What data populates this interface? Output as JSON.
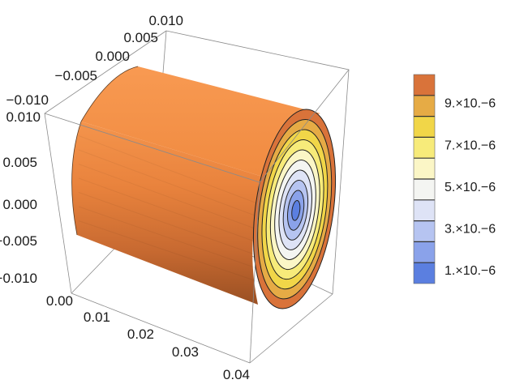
{
  "chart_data": {
    "type": "3d-cylinder-contour",
    "title": "",
    "axes": {
      "depth_axis": {
        "label": "",
        "ticks": [
          "0.010",
          "0.005",
          "0.000",
          "−0.005",
          "−0.010"
        ]
      },
      "vertical_axis": {
        "label": "",
        "ticks": [
          "0.010",
          "0.005",
          "0.000",
          "−0.005",
          "−0.010"
        ]
      },
      "front_axis": {
        "label": "",
        "ticks": [
          "0.00",
          "0.01",
          "0.02",
          "0.03",
          "0.04"
        ]
      }
    },
    "ranges": {
      "depth": [
        -0.01,
        0.01
      ],
      "vertical": [
        -0.01,
        0.01
      ],
      "front": [
        0,
        0.04
      ]
    },
    "cylinder_radius": 0.01,
    "contour_levels": [
      1e-06,
      2e-06,
      3e-06,
      4e-06,
      5e-06,
      6e-06,
      7e-06,
      8e-06,
      9e-06,
      1e-05
    ],
    "legend": {
      "placement": "right",
      "colors": [
        "#5b7fe0",
        "#8aa2ea",
        "#b6c4f1",
        "#dee3f6",
        "#f4f5f2",
        "#fbf6c6",
        "#f7eb7a",
        "#f1d648",
        "#e6ab45",
        "#d9733a"
      ],
      "labels": [
        "1.×10.−6",
        "3.×10.−6",
        "5.×10.−6",
        "7.×10.−6",
        "9.×10.−6"
      ]
    },
    "surface_color": "#f08a40"
  }
}
